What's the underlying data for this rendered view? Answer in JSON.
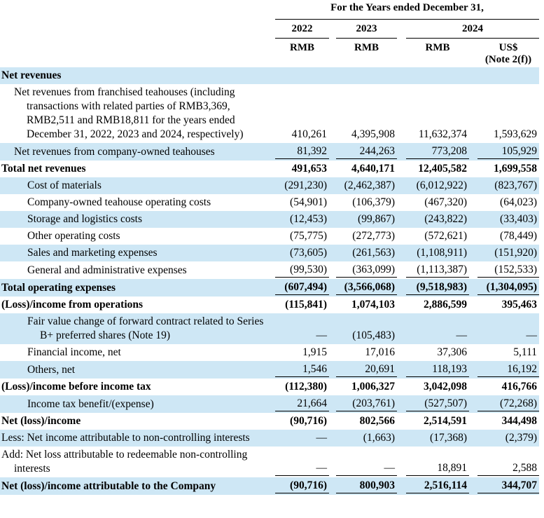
{
  "colors": {
    "row_highlight": "#cee7f5",
    "text": "#000000",
    "rule": "#000000"
  },
  "header": {
    "title": "For the Years ended December 31,",
    "years": [
      {
        "label": "2022"
      },
      {
        "label": "2023"
      },
      {
        "label": "2024"
      }
    ],
    "units": [
      {
        "line1": "RMB",
        "line2": ""
      },
      {
        "line1": "RMB",
        "line2": ""
      },
      {
        "line1": "RMB",
        "line2": ""
      },
      {
        "line1": "US$",
        "line2": "(Note 2(f))"
      }
    ]
  },
  "table": {
    "columns": [
      "2022 RMB",
      "2023 RMB",
      "2024 RMB",
      "2024 US$ (Note 2(f))"
    ],
    "rows": [
      {
        "label": "Net revenues",
        "indent": 0,
        "bold": true,
        "highlight": true,
        "underline": false,
        "values": [
          "",
          "",
          "",
          ""
        ]
      },
      {
        "label": "Net revenues from franchised teahouses (including transactions with related parties of RMB3,369, RMB2,511 and RMB18,811 for the years ended December 31, 2022, 2023 and 2024, respectively)",
        "indent": 1,
        "bold": false,
        "highlight": false,
        "underline": false,
        "values": [
          "410,261",
          "4,395,908",
          "11,632,374",
          "1,593,629"
        ]
      },
      {
        "label": "Net revenues from company-owned teahouses",
        "indent": 1,
        "bold": false,
        "highlight": true,
        "underline": true,
        "values": [
          "81,392",
          "244,263",
          "773,208",
          "105,929"
        ]
      },
      {
        "label": "Total net revenues",
        "indent": 0,
        "bold": true,
        "highlight": false,
        "underline": false,
        "values": [
          "491,653",
          "4,640,171",
          "12,405,582",
          "1,699,558"
        ]
      },
      {
        "label": "Cost of materials",
        "indent": 2,
        "bold": false,
        "highlight": true,
        "underline": false,
        "values": [
          "(291,230)",
          "(2,462,387)",
          "(6,012,922)",
          "(823,767)"
        ]
      },
      {
        "label": "Company-owned teahouse operating costs",
        "indent": 2,
        "bold": false,
        "highlight": false,
        "underline": false,
        "values": [
          "(54,901)",
          "(106,379)",
          "(467,320)",
          "(64,023)"
        ]
      },
      {
        "label": "Storage and logistics costs",
        "indent": 2,
        "bold": false,
        "highlight": true,
        "underline": false,
        "values": [
          "(12,453)",
          "(99,867)",
          "(243,822)",
          "(33,403)"
        ]
      },
      {
        "label": "Other operating costs",
        "indent": 2,
        "bold": false,
        "highlight": false,
        "underline": false,
        "values": [
          "(75,775)",
          "(272,773)",
          "(572,621)",
          "(78,449)"
        ]
      },
      {
        "label": "Sales and marketing expenses",
        "indent": 2,
        "bold": false,
        "highlight": true,
        "underline": false,
        "values": [
          "(73,605)",
          "(261,563)",
          "(1,108,911)",
          "(151,920)"
        ]
      },
      {
        "label": "General and administrative expenses",
        "indent": 2,
        "bold": false,
        "highlight": false,
        "underline": true,
        "values": [
          "(99,530)",
          "(363,099)",
          "(1,113,387)",
          "(152,533)"
        ]
      },
      {
        "label": "Total operating expenses",
        "indent": 0,
        "bold": true,
        "highlight": true,
        "underline": true,
        "values": [
          "(607,494)",
          "(3,566,068)",
          "(9,518,983)",
          "(1,304,095)"
        ]
      },
      {
        "label": "(Loss)/income from operations",
        "indent": 0,
        "bold": true,
        "highlight": false,
        "underline": false,
        "values": [
          "(115,841)",
          "1,074,103",
          "2,886,599",
          "395,463"
        ]
      },
      {
        "label": "Fair value change of forward contract related to Series B+ preferred shares (Note 19)",
        "indent": 2,
        "bold": false,
        "highlight": true,
        "underline": false,
        "values": [
          "—",
          "(105,483)",
          "—",
          "—"
        ]
      },
      {
        "label": "Financial income, net",
        "indent": 2,
        "bold": false,
        "highlight": false,
        "underline": false,
        "values": [
          "1,915",
          "17,016",
          "37,306",
          "5,111"
        ]
      },
      {
        "label": "Others, net",
        "indent": 2,
        "bold": false,
        "highlight": true,
        "underline": true,
        "values": [
          "1,546",
          "20,691",
          "118,193",
          "16,192"
        ]
      },
      {
        "label": "(Loss)/income before income tax",
        "indent": 0,
        "bold": true,
        "highlight": false,
        "underline": false,
        "values": [
          "(112,380)",
          "1,006,327",
          "3,042,098",
          "416,766"
        ]
      },
      {
        "label": "Income tax benefit/(expense)",
        "indent": 2,
        "bold": false,
        "highlight": true,
        "underline": true,
        "values": [
          "21,664",
          "(203,761)",
          "(527,507)",
          "(72,268)"
        ]
      },
      {
        "label": "Net (loss)/income",
        "indent": 0,
        "bold": true,
        "highlight": false,
        "underline": false,
        "values": [
          "(90,716)",
          "802,566",
          "2,514,591",
          "344,498"
        ]
      },
      {
        "label": "Less: Net income attributable to non-controlling interests",
        "indent": 0,
        "bold": false,
        "highlight": true,
        "underline": false,
        "values": [
          "—",
          "(1,663)",
          "(17,368)",
          "(2,379)"
        ]
      },
      {
        "label": "Add: Net loss attributable to redeemable non-controlling interests",
        "indent": 0,
        "bold": false,
        "highlight": false,
        "underline": true,
        "values": [
          "—",
          "—",
          "18,891",
          "2,588"
        ]
      },
      {
        "label": "Net (loss)/income attributable to the Company",
        "indent": 0,
        "bold": true,
        "highlight": true,
        "underline": true,
        "values": [
          "(90,716)",
          "800,903",
          "2,516,114",
          "344,707"
        ]
      }
    ]
  }
}
